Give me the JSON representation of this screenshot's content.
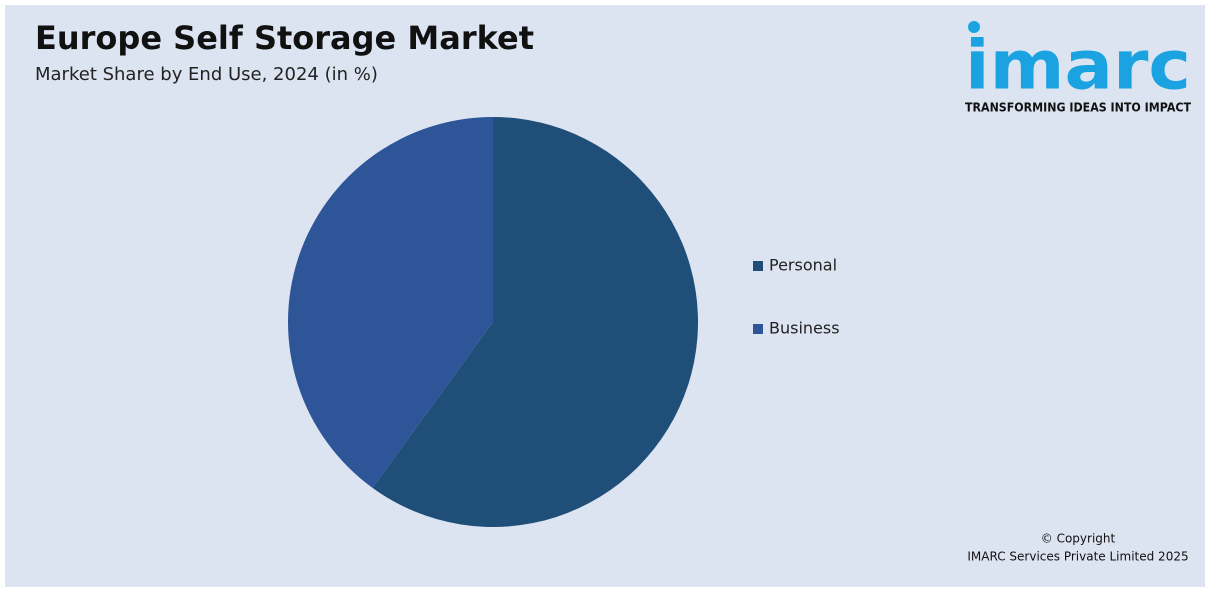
{
  "chart_data": {
    "type": "pie",
    "title": "Europe Self Storage Market",
    "subtitle": "Market Share by End Use, 2024 (in %)",
    "categories": [
      "Personal",
      "Business"
    ],
    "values": [
      60,
      40
    ],
    "colors": [
      "#1f4e79",
      "#2e5597"
    ],
    "legend": "right"
  },
  "logo": {
    "name": "imarc",
    "tagline": "TRANSFORMING IDEAS INTO IMPACT"
  },
  "footer": {
    "line1": "© Copyright",
    "line2": "IMARC Services Private Limited 2025"
  }
}
